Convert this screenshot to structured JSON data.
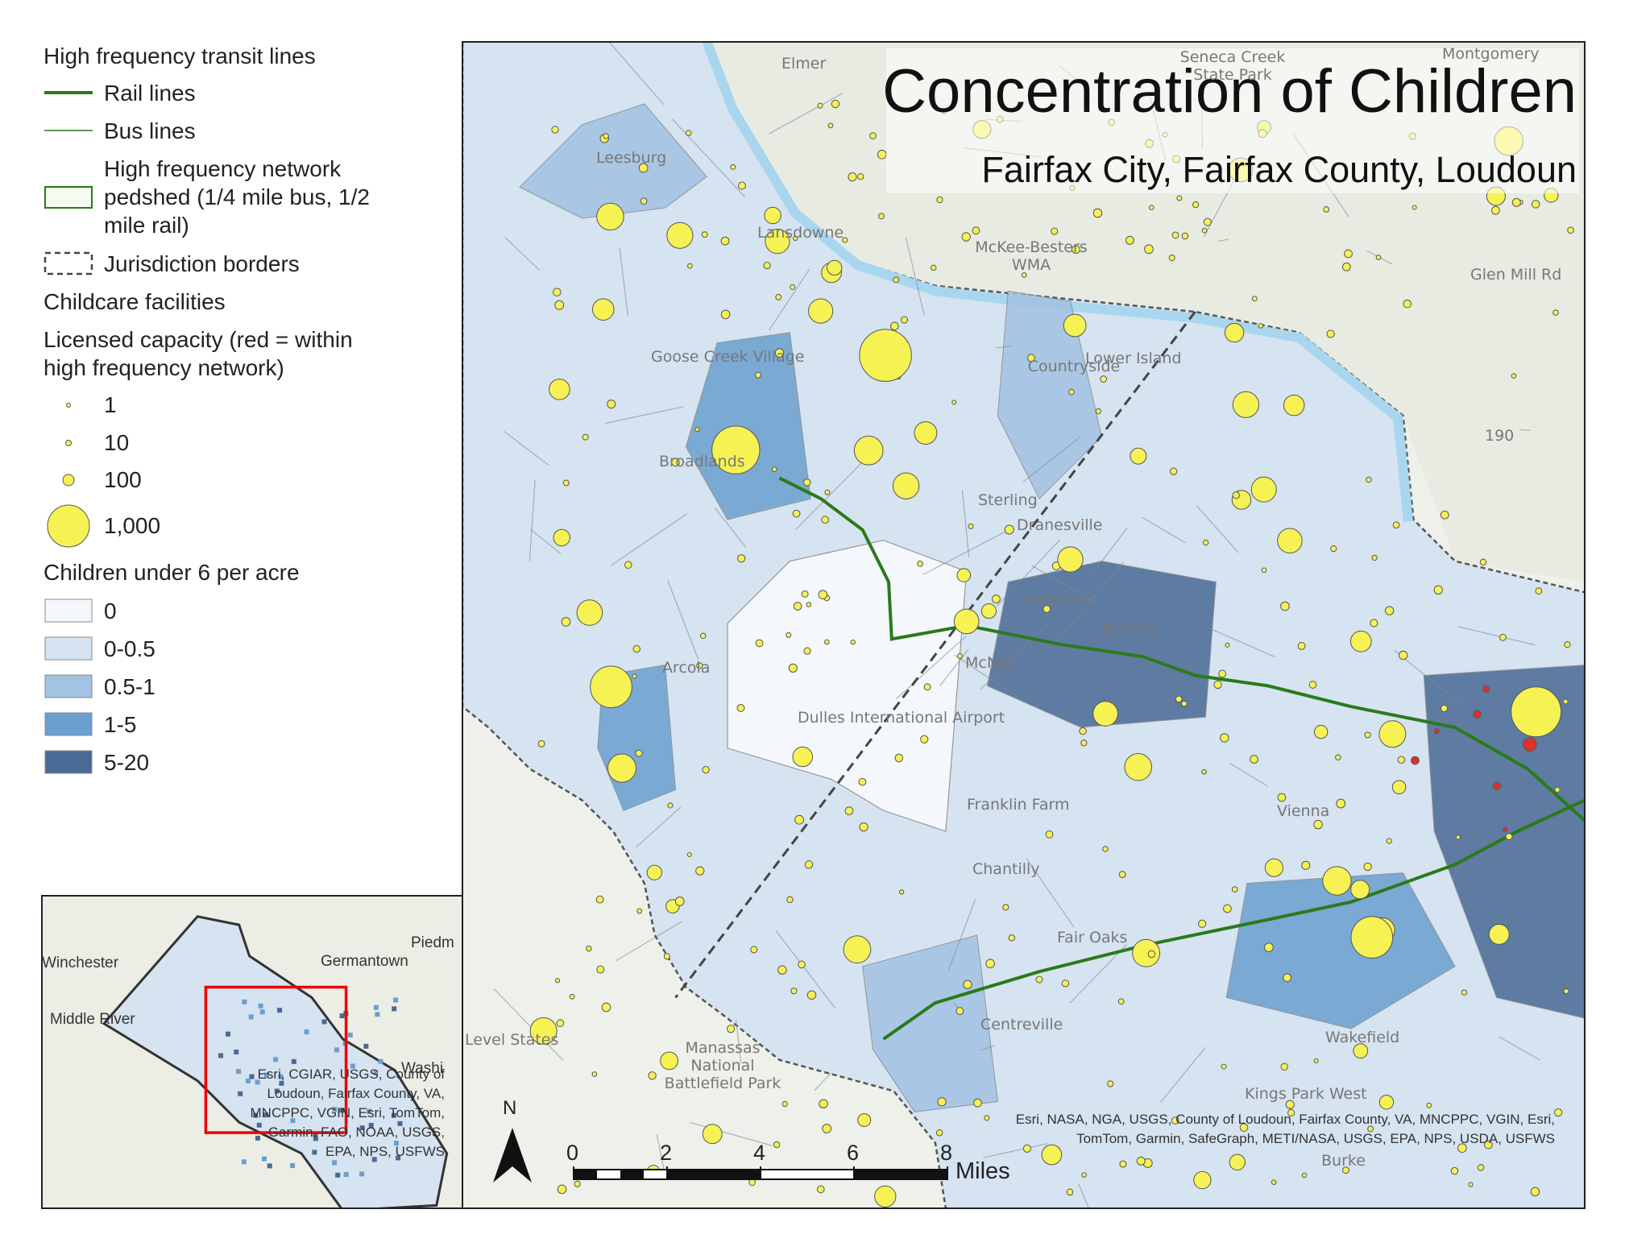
{
  "legend": {
    "transit_title": "High frequency transit lines",
    "rail": "Rail lines",
    "bus": "Bus lines",
    "pedshed": "High frequency network pedshed (1/4 mile bus, 1/2 mile rail)",
    "borders": "Jurisdiction borders",
    "childcare_title": "Childcare facilities",
    "capacity_title": "Licensed capacity (red = within high frequency network)",
    "capacity_sizes": [
      "1",
      "10",
      "100",
      "1,000"
    ],
    "density_title": "Children under 6 per acre",
    "density_classes": [
      {
        "label": "0",
        "color": "#f4f7fb"
      },
      {
        "label": "0-0.5",
        "color": "#d6e3f1"
      },
      {
        "label": "0.5-1",
        "color": "#a2c3e2"
      },
      {
        "label": "1-5",
        "color": "#6a9fd0"
      },
      {
        "label": "5-20",
        "color": "#4a6a95"
      }
    ]
  },
  "map": {
    "title": "Concentration of Children",
    "subtitle": "Fairfax City, Fairfax County, Loudoun",
    "places": [
      "Elmer",
      "Seneca Creek State Park",
      "Montgomery",
      "Leesburg",
      "Lansdowne",
      "McKee-Besters WMA",
      "Glen Mill Rd",
      "Goose Creek Village",
      "Countryside",
      "Lower Island",
      "190",
      "Broadlands",
      "Sterling",
      "Dranesville",
      "Herndon",
      "Reston",
      "McNair",
      "Arcola",
      "Dulles International Airport",
      "Franklin Farm",
      "Chantilly",
      "Vienna",
      "Fair Oaks",
      "Centreville",
      "Manassas National Battlefield Park",
      "Kings Park West",
      "Burke",
      "Wakefield",
      "Level States"
    ],
    "attribution": "Esri, NASA, NGA, USGS, County of Loudoun, Fairfax County, VA, MNCPPC, VGIN, Esri, TomTom, Garmin, SafeGraph, METI/NASA, USGS, EPA, NPS, USDA, USFWS",
    "north": "N",
    "scale_ticks": [
      0,
      2,
      4,
      6,
      8
    ],
    "scale_unit": "Miles"
  },
  "inset": {
    "places": [
      "Winchester",
      "Germantown",
      "Piedm",
      "Middle River",
      "Washi"
    ],
    "attribution": "Esri, CGIAR, USGS, County of Loudoun, Fairfax County, VA, MNCPPC, VGIN, Esri, TomTom, Garmin, FAO, NOAA, USGS, EPA, NPS, USFWS"
  }
}
